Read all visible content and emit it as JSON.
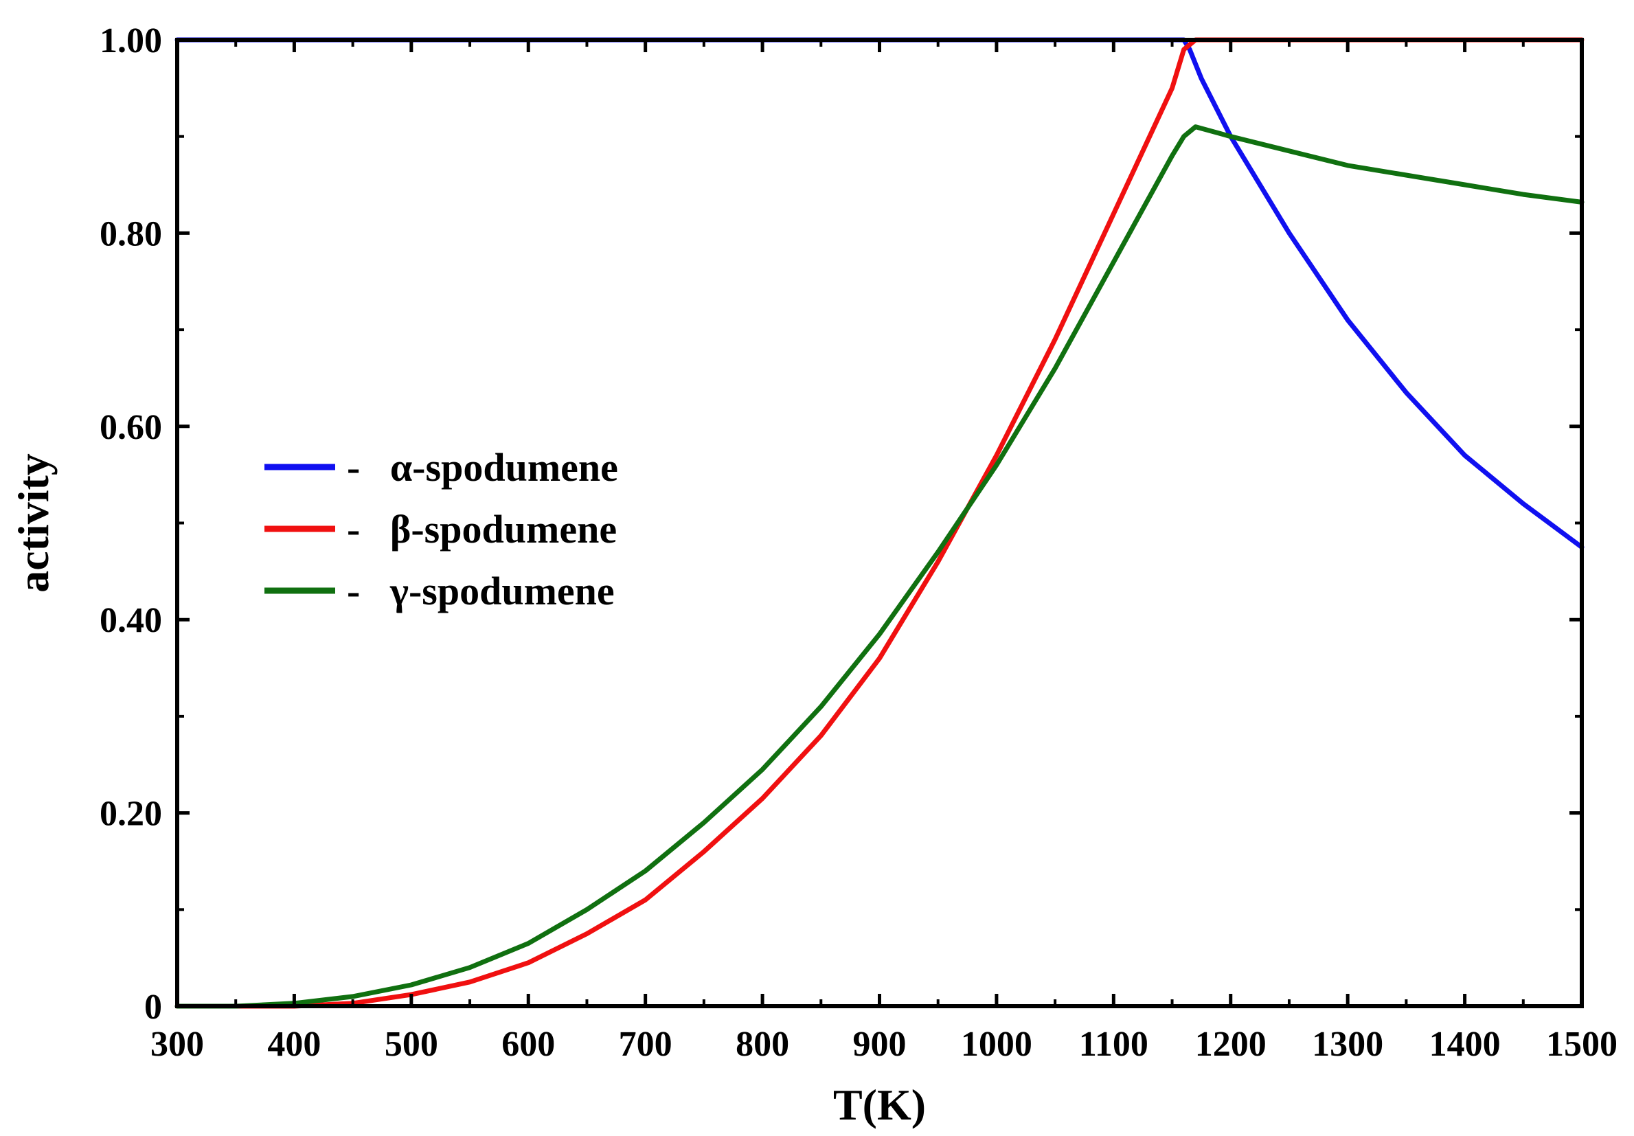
{
  "chart_data": {
    "type": "line",
    "title": "",
    "xlabel": "T(K)",
    "ylabel": "activity",
    "xlim": [
      300,
      1500
    ],
    "ylim": [
      0,
      1.0
    ],
    "x_ticks": [
      300,
      400,
      500,
      600,
      700,
      800,
      900,
      1000,
      1100,
      1200,
      1300,
      1400,
      1500
    ],
    "x_tick_labels": [
      "300",
      "400",
      "500",
      "600",
      "700",
      "800",
      "900",
      "1000",
      "1100",
      "1200",
      "1300",
      "1400",
      "1500"
    ],
    "y_ticks": [
      0,
      0.2,
      0.4,
      0.6,
      0.8,
      1.0
    ],
    "y_tick_labels": [
      "0",
      "0.20",
      "0.40",
      "0.60",
      "0.80",
      "1.00"
    ],
    "grid": false,
    "legend_position": "left-middle",
    "series": [
      {
        "name": "α-spodumene",
        "legend_label": "-   α-spodumene",
        "color": "#1010f0",
        "x": [
          300,
          400,
          500,
          600,
          700,
          800,
          900,
          1000,
          1100,
          1160,
          1165,
          1175,
          1200,
          1250,
          1300,
          1350,
          1400,
          1450,
          1500
        ],
        "y": [
          1.0,
          1.0,
          1.0,
          1.0,
          1.0,
          1.0,
          1.0,
          1.0,
          1.0,
          1.0,
          0.99,
          0.96,
          0.9,
          0.8,
          0.71,
          0.635,
          0.57,
          0.52,
          0.475
        ]
      },
      {
        "name": "β-spodumene",
        "legend_label": "-   β-spodumene",
        "color": "#f01010",
        "x": [
          300,
          350,
          400,
          450,
          500,
          550,
          600,
          650,
          700,
          750,
          800,
          850,
          900,
          950,
          1000,
          1050,
          1100,
          1150,
          1160,
          1170,
          1200,
          1300,
          1400,
          1500
        ],
        "y": [
          0.0,
          0.0,
          0.0,
          0.003,
          0.012,
          0.025,
          0.045,
          0.075,
          0.11,
          0.16,
          0.215,
          0.28,
          0.36,
          0.46,
          0.57,
          0.69,
          0.82,
          0.95,
          0.99,
          1.0,
          1.0,
          1.0,
          1.0,
          1.0
        ]
      },
      {
        "name": "γ-spodumene",
        "legend_label": "-   γ-spodumene",
        "color": "#107010",
        "x": [
          300,
          350,
          400,
          450,
          500,
          550,
          600,
          650,
          700,
          750,
          800,
          850,
          900,
          950,
          1000,
          1050,
          1100,
          1150,
          1160,
          1170,
          1200,
          1250,
          1300,
          1350,
          1400,
          1450,
          1500
        ],
        "y": [
          0.0,
          0.0,
          0.003,
          0.01,
          0.022,
          0.04,
          0.065,
          0.1,
          0.14,
          0.19,
          0.245,
          0.31,
          0.385,
          0.47,
          0.56,
          0.66,
          0.77,
          0.88,
          0.9,
          0.91,
          0.9,
          0.885,
          0.87,
          0.86,
          0.85,
          0.84,
          0.832
        ]
      }
    ]
  }
}
